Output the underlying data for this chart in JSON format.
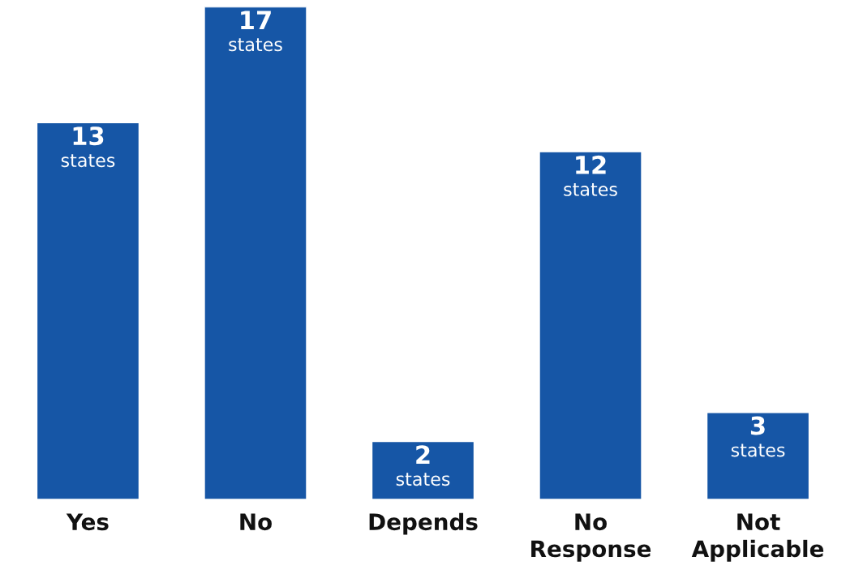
{
  "chart_data": {
    "type": "bar",
    "categories": [
      "Yes",
      "No",
      "Depends",
      "No\nResponse",
      "Not\nApplicable"
    ],
    "values": [
      13,
      17,
      2,
      12,
      3
    ],
    "value_labels": [
      "13\nstates",
      "17\nstates",
      "2\nstates",
      "12\nstates",
      "3\nstates"
    ],
    "color": "#1656a6",
    "ylim": [
      0,
      17
    ],
    "tick_labels": "x",
    "grid": false,
    "legend": false
  }
}
